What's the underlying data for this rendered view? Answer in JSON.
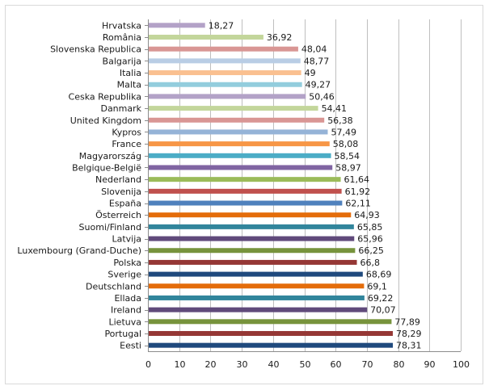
{
  "chart_data": {
    "type": "bar",
    "orientation": "horizontal",
    "categories": [
      "Hrvatska",
      "România",
      "Slovenska Republica",
      "Balgarija",
      "Italia",
      "Malta",
      "Ceska Republika",
      "Danmark",
      "United Kingdom",
      "Kypros",
      "France",
      "Magyarország",
      "Belgique-België",
      "Nederland",
      "Slovenija",
      "España",
      "Österreich",
      "Suomi/Finland",
      "Latvija",
      "Luxembourg (Grand-Duche)",
      "Polska",
      "Sverige",
      "Deutschland",
      "Ellada",
      "Ireland",
      "Lietuva",
      "Portugal",
      "Eesti"
    ],
    "values": [
      18.27,
      36.92,
      48.04,
      48.77,
      49,
      49.27,
      50.46,
      54.41,
      56.38,
      57.49,
      58.08,
      58.54,
      58.97,
      61.64,
      61.92,
      62.11,
      64.93,
      65.85,
      65.96,
      66.25,
      66.8,
      68.69,
      69.1,
      69.22,
      70.07,
      77.89,
      78.29,
      78.31
    ],
    "value_labels": [
      "18,27",
      "36,92",
      "48,04",
      "48,77",
      "49",
      "49,27",
      "50,46",
      "54,41",
      "56,38",
      "57,49",
      "58,08",
      "58,54",
      "58,97",
      "61,64",
      "61,92",
      "62,11",
      "64,93",
      "65,85",
      "65,96",
      "66,25",
      "66,8",
      "68,69",
      "69,1",
      "69,22",
      "70,07",
      "77,89",
      "78,29",
      "78,31"
    ],
    "colors": [
      "#b3a2c7",
      "#c3d69b",
      "#d99694",
      "#b9cde5",
      "#fac090",
      "#93cddd",
      "#b3a2c7",
      "#c3d69b",
      "#d99694",
      "#95b3d7",
      "#f79646",
      "#4bacc6",
      "#8064a2",
      "#9bbb59",
      "#c0504d",
      "#4f81bd",
      "#e46c0a",
      "#31859c",
      "#604a7b",
      "#77933c",
      "#953735",
      "#1f497d",
      "#e46c0a",
      "#31859c",
      "#604a7b",
      "#77933c",
      "#953735",
      "#1f497d"
    ],
    "xlim": [
      0,
      100
    ],
    "xticks": [
      0,
      10,
      20,
      30,
      40,
      50,
      60,
      70,
      80,
      90,
      100
    ],
    "grid": "vertical",
    "title": "",
    "xlabel": "",
    "ylabel": "",
    "legend": "none"
  }
}
